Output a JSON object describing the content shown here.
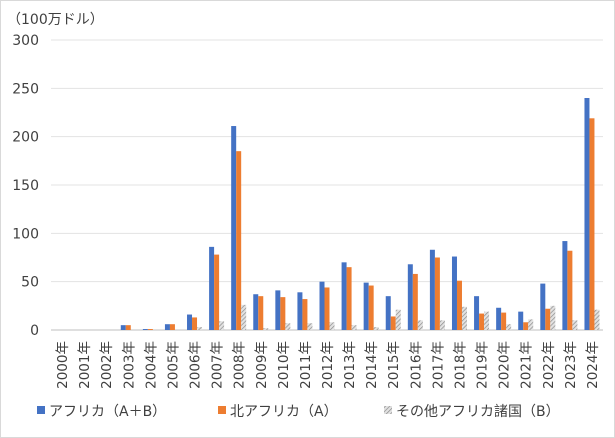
{
  "chart_data": {
    "type": "bar",
    "unit_label": "（100万ドル）",
    "ylim": [
      0,
      300
    ],
    "yticks": [
      0,
      50,
      100,
      150,
      200,
      250,
      300
    ],
    "grid": true,
    "legend_position": "bottom",
    "categories": [
      "2000年",
      "2001年",
      "2002年",
      "2003年",
      "2004年",
      "2005年",
      "2006年",
      "2007年",
      "2008年",
      "2009年",
      "2010年",
      "2011年",
      "2012年",
      "2013年",
      "2014年",
      "2015年",
      "2016年",
      "2017年",
      "2018年",
      "2019年",
      "2020年",
      "2021年",
      "2022年",
      "2023年",
      "2024年"
    ],
    "series": [
      {
        "name": "アフリカ（A＋B）",
        "color": "#4472c4",
        "pattern": "solid",
        "values": [
          0,
          0,
          0,
          5,
          1,
          6,
          16,
          86,
          211,
          37,
          41,
          39,
          50,
          70,
          49,
          35,
          68,
          83,
          76,
          35,
          23,
          19,
          48,
          92,
          240
        ]
      },
      {
        "name": "北アフリカ（A）",
        "color": "#ed7d31",
        "pattern": "solid",
        "values": [
          0,
          0,
          0,
          5,
          1,
          6,
          13,
          78,
          185,
          35,
          34,
          32,
          44,
          65,
          46,
          14,
          58,
          75,
          51,
          17,
          18,
          8,
          22,
          82,
          219
        ]
      },
      {
        "name": "その他アフリカ諸国（B）",
        "color": "#a5a5a5",
        "pattern": "hatched",
        "values": [
          0,
          0,
          0,
          0,
          0,
          0,
          3,
          9,
          26,
          2,
          7,
          7,
          8,
          5,
          3,
          21,
          10,
          10,
          24,
          19,
          6,
          11,
          25,
          10,
          21
        ]
      }
    ]
  }
}
